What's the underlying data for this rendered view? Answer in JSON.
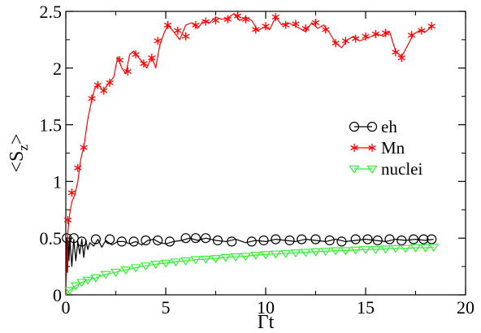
{
  "chart_data": {
    "type": "line",
    "xlabel": "Γt",
    "ylabel": "<S_z>",
    "xlim": [
      0,
      20
    ],
    "ylim": [
      0,
      2.5
    ],
    "x_ticks": [
      "0",
      "5",
      "10",
      "15",
      "20"
    ],
    "y_ticks": [
      "0",
      "0.5",
      "1",
      "1.5",
      "2",
      "2.5"
    ],
    "grid": false,
    "legend_position": "right",
    "series": [
      {
        "name": "eh",
        "color": "#000000",
        "marker": "circle",
        "x": [
          0,
          0.04,
          0.08,
          0.12,
          0.16,
          0.2,
          0.3,
          0.4,
          0.5,
          0.6,
          0.7,
          0.8,
          0.9,
          1.0,
          1.1,
          1.2,
          1.4,
          1.6,
          1.8,
          2.0,
          2.3,
          2.6,
          2.9,
          3.2,
          3.5,
          3.8,
          4.1,
          4.4,
          4.7,
          5.0,
          5.4,
          5.8,
          6.2,
          6.6,
          7.0,
          7.5,
          8.0,
          8.5,
          9.0,
          9.5,
          10.0,
          10.5,
          11.0,
          11.5,
          12.0,
          12.5,
          13.0,
          13.5,
          14.0,
          14.5,
          15.0,
          15.5,
          16.0,
          16.5,
          17.0,
          17.5,
          18.0,
          18.4
        ],
        "values": [
          0.03,
          0.5,
          0.2,
          0.48,
          0.3,
          0.5,
          0.25,
          0.49,
          0.3,
          0.47,
          0.36,
          0.49,
          0.33,
          0.48,
          0.4,
          0.46,
          0.43,
          0.49,
          0.42,
          0.48,
          0.44,
          0.47,
          0.47,
          0.45,
          0.47,
          0.44,
          0.48,
          0.49,
          0.46,
          0.45,
          0.47,
          0.48,
          0.5,
          0.48,
          0.5,
          0.48,
          0.47,
          0.49,
          0.46,
          0.48,
          0.47,
          0.49,
          0.48,
          0.47,
          0.49,
          0.48,
          0.47,
          0.49,
          0.47,
          0.48,
          0.49,
          0.48,
          0.47,
          0.49,
          0.48,
          0.49,
          0.48,
          0.49
        ],
        "marker_x": [
          0.05,
          0.4,
          0.8,
          1.5,
          2.2,
          2.8,
          3.4,
          4.0,
          4.6,
          5.2,
          6.0,
          6.5,
          7.0,
          7.6,
          8.3,
          9.3,
          9.9,
          10.5,
          11.2,
          11.8,
          12.5,
          13.2,
          13.8,
          14.5,
          15.1,
          15.6,
          16.2,
          16.8,
          17.4,
          17.9,
          18.3
        ],
        "marker_values": [
          0.5,
          0.5,
          0.47,
          0.49,
          0.49,
          0.47,
          0.47,
          0.48,
          0.48,
          0.47,
          0.5,
          0.5,
          0.5,
          0.48,
          0.47,
          0.47,
          0.48,
          0.49,
          0.48,
          0.49,
          0.49,
          0.48,
          0.47,
          0.49,
          0.49,
          0.48,
          0.49,
          0.48,
          0.49,
          0.49,
          0.49
        ]
      },
      {
        "name": "Mn",
        "color": "#ff0000",
        "marker": "asterisk",
        "x": [
          0.0,
          0.1,
          0.2,
          0.3,
          0.45,
          0.6,
          0.75,
          0.9,
          1.1,
          1.3,
          1.45,
          1.65,
          1.85,
          2.0,
          2.2,
          2.4,
          2.6,
          2.8,
          3.0,
          3.2,
          3.4,
          3.6,
          3.85,
          4.05,
          4.3,
          4.5,
          4.7,
          4.9,
          5.1,
          5.4,
          5.7,
          6.0,
          6.3,
          6.6,
          6.9,
          7.2,
          7.5,
          7.8,
          8.1,
          8.4,
          8.7,
          9.0,
          9.3,
          9.6,
          9.9,
          10.2,
          10.5,
          10.8,
          11.1,
          11.4,
          11.7,
          12.0,
          12.3,
          12.6,
          12.9,
          13.2,
          13.5,
          13.8,
          14.1,
          14.4,
          14.7,
          15.0,
          15.3,
          15.6,
          15.9,
          16.2,
          16.5,
          16.8,
          17.1,
          17.4,
          17.7,
          18.0,
          18.4
        ],
        "values": [
          0.0,
          0.55,
          0.72,
          0.82,
          0.88,
          1.0,
          1.2,
          1.3,
          1.55,
          1.72,
          1.82,
          1.85,
          1.8,
          1.83,
          1.88,
          1.92,
          2.1,
          2.0,
          1.95,
          2.12,
          2.15,
          2.1,
          2.05,
          2.0,
          2.1,
          2.0,
          2.2,
          2.3,
          2.38,
          2.32,
          2.25,
          2.38,
          2.4,
          2.35,
          2.42,
          2.4,
          2.45,
          2.43,
          2.44,
          2.48,
          2.42,
          2.45,
          2.42,
          2.33,
          2.36,
          2.34,
          2.45,
          2.38,
          2.4,
          2.38,
          2.35,
          2.32,
          2.4,
          2.35,
          2.38,
          2.31,
          2.22,
          2.18,
          2.25,
          2.28,
          2.24,
          2.26,
          2.28,
          2.3,
          2.28,
          2.32,
          2.15,
          2.1,
          2.2,
          2.3,
          2.33,
          2.32,
          2.38
        ],
        "marker_x": [
          0.1,
          0.3,
          0.6,
          0.9,
          1.3,
          1.6,
          1.9,
          2.2,
          2.7,
          3.1,
          3.5,
          3.9,
          4.3,
          4.6,
          5.1,
          5.6,
          6.0,
          6.5,
          7.0,
          7.5,
          8.1,
          8.6,
          9.0,
          9.5,
          10.0,
          10.5,
          11.0,
          11.5,
          12.0,
          12.5,
          13.0,
          13.5,
          14.0,
          14.5,
          15.0,
          15.5,
          16.0,
          16.5,
          16.8,
          17.3,
          17.8,
          18.3
        ],
        "marker_values": [
          0.66,
          0.9,
          1.12,
          1.3,
          1.73,
          1.85,
          1.8,
          1.87,
          2.07,
          1.97,
          2.12,
          2.04,
          2.09,
          2.24,
          2.38,
          2.33,
          2.28,
          2.38,
          2.41,
          2.42,
          2.43,
          2.46,
          2.43,
          2.34,
          2.37,
          2.45,
          2.38,
          2.39,
          2.35,
          2.4,
          2.34,
          2.22,
          2.24,
          2.26,
          2.28,
          2.3,
          2.31,
          2.14,
          2.09,
          2.29,
          2.33,
          2.37
        ]
      },
      {
        "name": "nuclei",
        "color": "#33ee33",
        "marker": "triangle-down",
        "x": [
          0.0,
          0.2,
          0.5,
          0.8,
          1.1,
          1.5,
          2.0,
          2.5,
          3.0,
          3.5,
          4.0,
          4.5,
          5.0,
          5.5,
          6.0,
          6.5,
          7.0,
          7.5,
          8.0,
          8.5,
          9.0,
          9.5,
          10.0,
          10.5,
          11.0,
          11.5,
          12.0,
          12.5,
          13.0,
          13.5,
          14.0,
          14.5,
          15.0,
          15.5,
          16.0,
          16.5,
          17.0,
          17.5,
          18.0,
          18.4
        ],
        "values": [
          0.0,
          0.04,
          0.08,
          0.11,
          0.13,
          0.15,
          0.18,
          0.2,
          0.22,
          0.24,
          0.255,
          0.27,
          0.28,
          0.29,
          0.3,
          0.31,
          0.315,
          0.32,
          0.33,
          0.335,
          0.34,
          0.35,
          0.355,
          0.36,
          0.365,
          0.37,
          0.375,
          0.38,
          0.385,
          0.39,
          0.39,
          0.395,
          0.4,
          0.4,
          0.405,
          0.41,
          0.41,
          0.415,
          0.415,
          0.42
        ]
      }
    ]
  }
}
